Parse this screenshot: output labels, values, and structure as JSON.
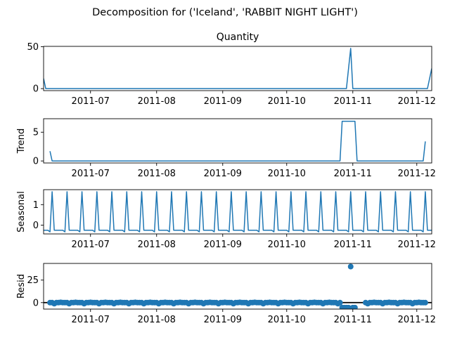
{
  "figure": {
    "title": "Decomposition for ('Iceland', 'RABBIT NIGHT LIGHT')"
  },
  "colors": {
    "series": "#1f77b4",
    "axis": "#000000",
    "zero_line": "#000000"
  },
  "chart_data": [
    {
      "type": "line",
      "title": "Quantity",
      "ylabel": "",
      "xlim": [
        "2011-06-09",
        "2011-12-08"
      ],
      "ylim": [
        -2.4,
        50.4
      ],
      "yticks": [
        0,
        50
      ],
      "xticks": [
        "2011-07-01",
        "2011-08-01",
        "2011-09-01",
        "2011-10-01",
        "2011-11-01",
        "2011-12-01"
      ],
      "xtick_labels": [
        "2011-07",
        "2011-08",
        "2011-09",
        "2011-10",
        "2011-11",
        "2011-12"
      ],
      "series": [
        {
          "points": [
            [
              "2011-06-09",
              12
            ],
            [
              "2011-06-10",
              0
            ],
            [
              "2011-10-29",
              0
            ],
            [
              "2011-10-31",
              48
            ],
            [
              "2011-11-01",
              0
            ],
            [
              "2011-12-06",
              0
            ],
            [
              "2011-12-08",
              24
            ]
          ]
        }
      ]
    },
    {
      "type": "line",
      "title": "",
      "ylabel": "Trend",
      "xlim": [
        "2011-06-09",
        "2011-12-08"
      ],
      "ylim": [
        -0.35,
        7.35
      ],
      "yticks": [
        0,
        5
      ],
      "xticks": [
        "2011-07-01",
        "2011-08-01",
        "2011-09-01",
        "2011-10-01",
        "2011-11-01",
        "2011-12-01"
      ],
      "xtick_labels": [
        "2011-07",
        "2011-08",
        "2011-09",
        "2011-10",
        "2011-11",
        "2011-12"
      ],
      "series": [
        {
          "points": [
            [
              "2011-06-12",
              1.7
            ],
            [
              "2011-06-13",
              0
            ],
            [
              "2011-10-26",
              0
            ],
            [
              "2011-10-27",
              6.9
            ],
            [
              "2011-11-02",
              6.9
            ],
            [
              "2011-11-03",
              0
            ],
            [
              "2011-12-04",
              0
            ],
            [
              "2011-12-05",
              3.4
            ]
          ]
        }
      ]
    },
    {
      "type": "line",
      "title": "",
      "ylabel": "Seasonal",
      "xlim": [
        "2011-06-09",
        "2011-12-08"
      ],
      "ylim": [
        -0.43,
        1.73
      ],
      "yticks": [
        0,
        1
      ],
      "xticks": [
        "2011-07-01",
        "2011-08-01",
        "2011-09-01",
        "2011-10-01",
        "2011-11-01",
        "2011-12-01"
      ],
      "xtick_labels": [
        "2011-07",
        "2011-08",
        "2011-09",
        "2011-10",
        "2011-11",
        "2011-12"
      ],
      "seasonal_pattern": {
        "start": "2011-06-09",
        "end": "2011-12-08",
        "period_days": 7,
        "values": [
          -0.25,
          -0.25,
          -0.25,
          -0.33,
          1.63,
          -0.25,
          -0.25
        ]
      }
    },
    {
      "type": "scatter",
      "title": "",
      "ylabel": "Resid",
      "xlim": [
        "2011-06-09",
        "2011-12-08"
      ],
      "ylim": [
        -7.2,
        43.5
      ],
      "yticks": [
        0,
        25
      ],
      "zero_line": true,
      "xticks": [
        "2011-07-01",
        "2011-08-01",
        "2011-09-01",
        "2011-10-01",
        "2011-11-01",
        "2011-12-01"
      ],
      "xtick_labels": [
        "2011-07",
        "2011-08",
        "2011-09",
        "2011-10",
        "2011-11",
        "2011-12"
      ],
      "default_resid": {
        "start": "2011-06-12",
        "end": "2011-12-05",
        "period_days": 7,
        "values": [
          0,
          0,
          -1.2,
          0,
          0,
          0.3,
          0
        ]
      },
      "overrides": [
        [
          "2011-10-27",
          -5.5
        ],
        [
          "2011-10-28",
          -5.5
        ],
        [
          "2011-10-29",
          -5.5
        ],
        [
          "2011-10-30",
          -5.5
        ],
        [
          "2011-10-31",
          40
        ],
        [
          "2011-11-01",
          -5.5
        ],
        [
          "2011-11-02",
          -5.5
        ]
      ],
      "gaps": [
        [
          "2011-11-03",
          "2011-11-06"
        ]
      ]
    }
  ]
}
